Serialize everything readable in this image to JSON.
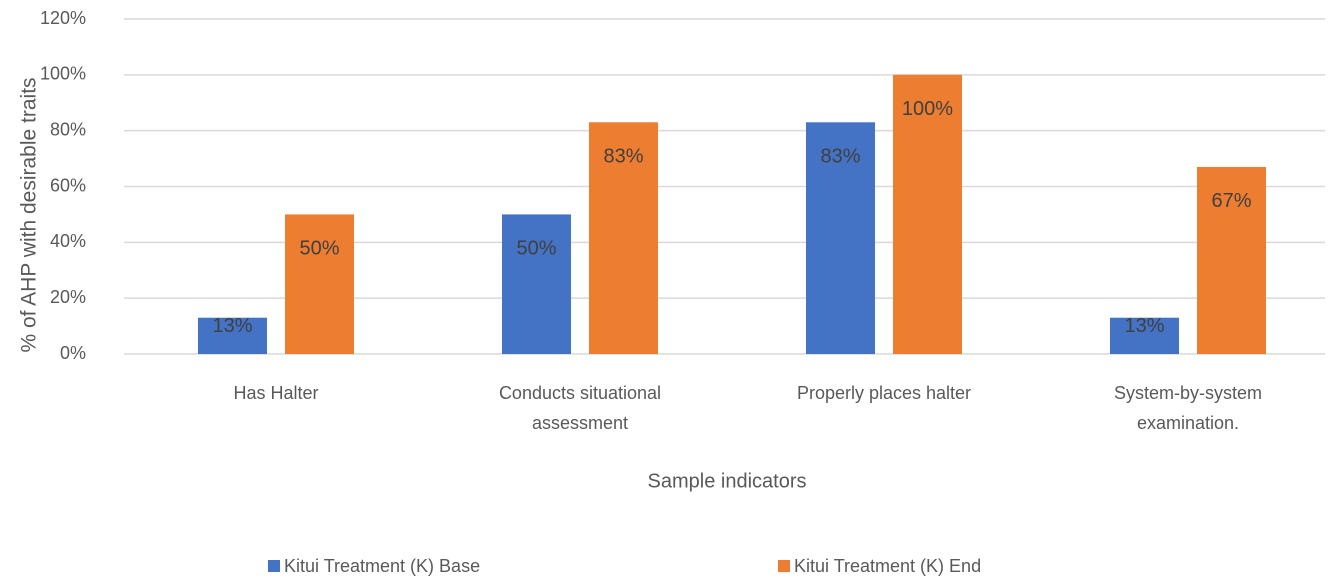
{
  "chart_data": {
    "type": "bar",
    "categories": [
      "Has Halter",
      "Conducts situational assessment",
      "Properly places halter",
      "System-by-system examination."
    ],
    "series": [
      {
        "name": "Kitui Treatment (K) Base",
        "color": "#4472c4",
        "values": [
          13,
          50,
          83,
          13
        ],
        "value_labels": [
          "13%",
          "50%",
          "83%",
          "13%"
        ]
      },
      {
        "name": "Kitui Treatment (K) End",
        "color": "#ed7d31",
        "values": [
          50,
          83,
          100,
          67
        ],
        "value_labels": [
          "50%",
          "83%",
          "100%",
          "67%"
        ]
      }
    ],
    "x_label": "Sample indicators",
    "y_label": "% of AHP with desirable traits",
    "ylim": [
      0,
      120
    ],
    "yticks": [
      {
        "value": 0,
        "label": "0%"
      },
      {
        "value": 20,
        "label": "20%"
      },
      {
        "value": 40,
        "label": "40%"
      },
      {
        "value": 60,
        "label": "60%"
      },
      {
        "value": 80,
        "label": "80%"
      },
      {
        "value": 100,
        "label": "100%"
      },
      {
        "value": 120,
        "label": "120%"
      }
    ],
    "grid": true,
    "legend": "bottom"
  }
}
